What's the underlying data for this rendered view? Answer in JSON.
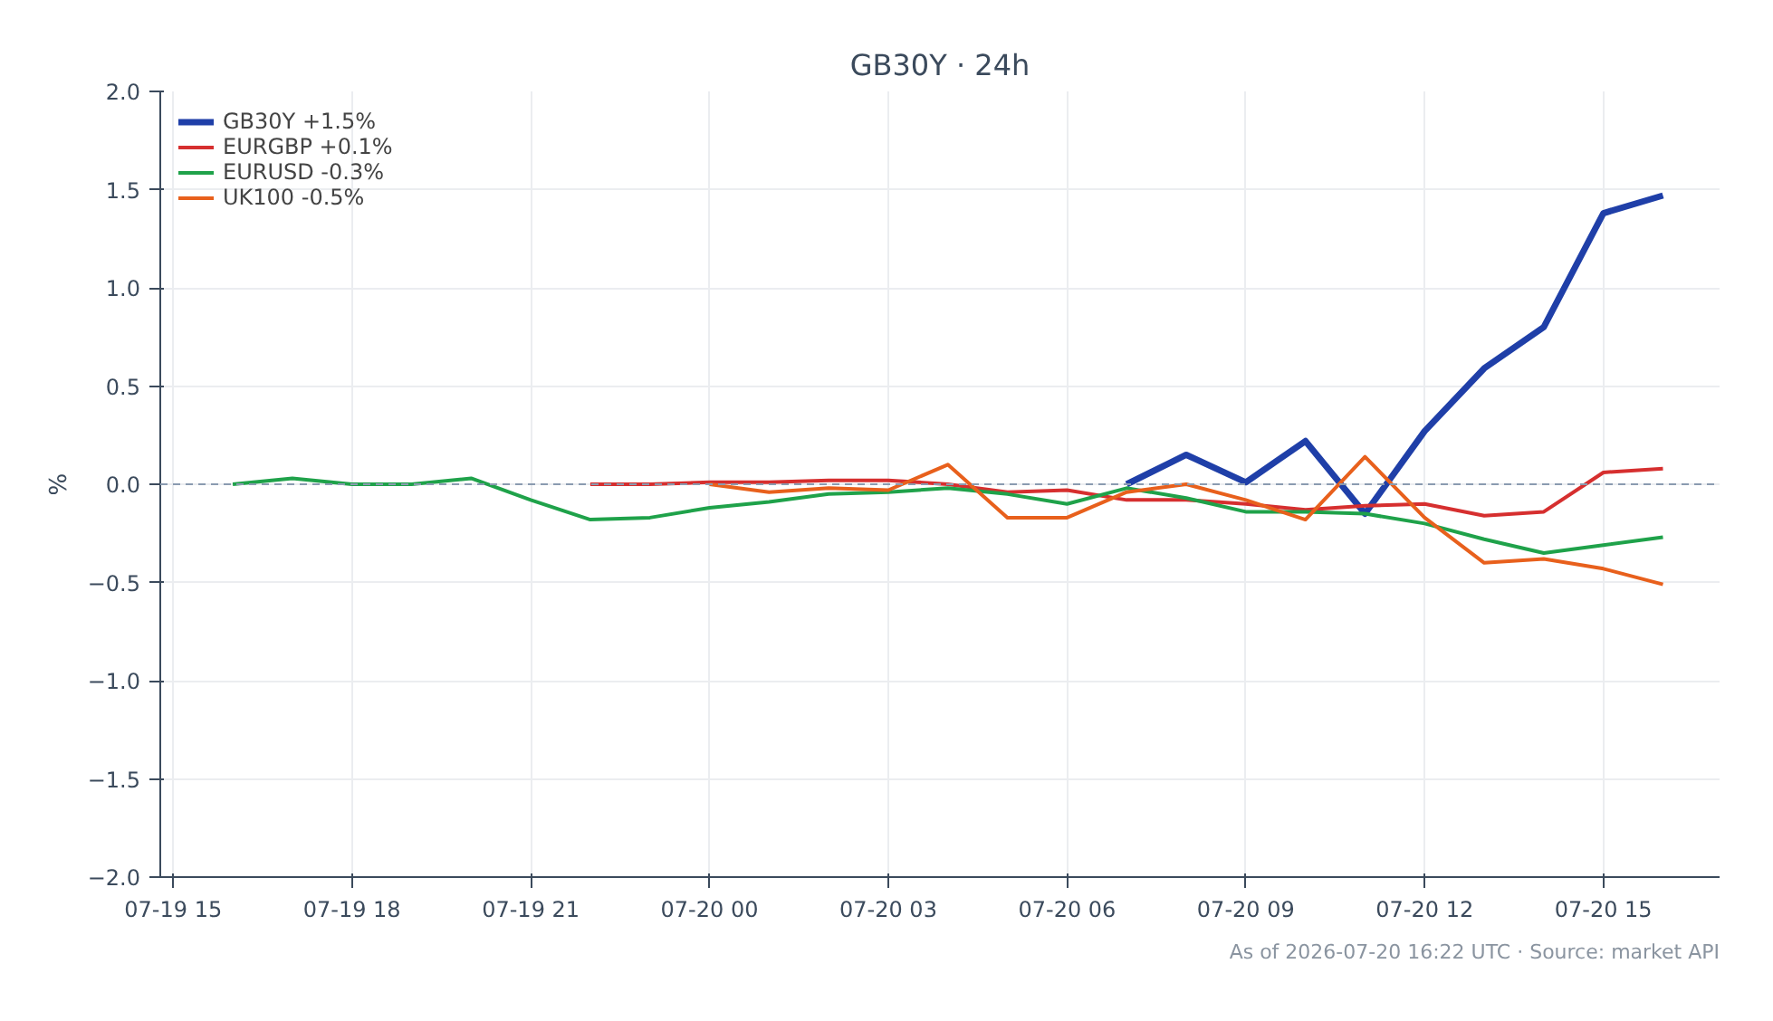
{
  "chart_data": {
    "type": "line",
    "title": "GB30Y · 24h",
    "ylabel": "%",
    "xlim": [
      "2026-07-19T14:47",
      "2026-07-20T16:57"
    ],
    "xticks": [
      {
        "value": "2026-07-19T15:00",
        "label": "07-19 15"
      },
      {
        "value": "2026-07-19T18:00",
        "label": "07-19 18"
      },
      {
        "value": "2026-07-19T21:00",
        "label": "07-19 21"
      },
      {
        "value": "2026-07-20T00:00",
        "label": "07-20 00"
      },
      {
        "value": "2026-07-20T03:00",
        "label": "07-20 03"
      },
      {
        "value": "2026-07-20T06:00",
        "label": "07-20 06"
      },
      {
        "value": "2026-07-20T09:00",
        "label": "07-20 09"
      },
      {
        "value": "2026-07-20T12:00",
        "label": "07-20 12"
      },
      {
        "value": "2026-07-20T15:00",
        "label": "07-20 15"
      }
    ],
    "ylim": [
      -2.0,
      2.0
    ],
    "yticks": [
      {
        "value": -2,
        "label": "−2.0"
      },
      {
        "value": -1.5,
        "label": "−1.5"
      },
      {
        "value": -1,
        "label": "−1.0"
      },
      {
        "value": -0.5,
        "label": "−0.5"
      },
      {
        "value": 0,
        "label": "0.0"
      },
      {
        "value": 0.5,
        "label": "0.5"
      },
      {
        "value": 1,
        "label": "1.0"
      },
      {
        "value": 1.5,
        "label": "1.5"
      },
      {
        "value": 2,
        "label": "2.0"
      }
    ],
    "grid": true,
    "legend": "top left",
    "line_style": "solid",
    "ref_lines": [
      {
        "axis": "y",
        "value": 0,
        "color": "#8a9bb0",
        "line_style": "dashed"
      }
    ],
    "annotations": [
      "As of 2026-07-20 16:22 UTC · Source: market API"
    ],
    "series": [
      {
        "name": "GB30Y +1.5%",
        "color": "#1f3fa8",
        "x": [
          "2026-07-20T07:00",
          "2026-07-20T08:00",
          "2026-07-20T09:00",
          "2026-07-20T10:00",
          "2026-07-20T11:00",
          "2026-07-20T12:00",
          "2026-07-20T13:00",
          "2026-07-20T14:00",
          "2026-07-20T15:00",
          "2026-07-20T16:00"
        ],
        "values": [
          0,
          0.15,
          0.01,
          0.22,
          -0.15,
          0.27,
          0.59,
          0.8,
          1.38,
          1.47
        ]
      },
      {
        "name": "EURGBP +0.1%",
        "color": "#d62f2f",
        "x": [
          "2026-07-19T22:00",
          "2026-07-19T23:00",
          "2026-07-20T00:00",
          "2026-07-20T01:00",
          "2026-07-20T02:00",
          "2026-07-20T03:00",
          "2026-07-20T04:00",
          "2026-07-20T05:00",
          "2026-07-20T06:00",
          "2026-07-20T07:00",
          "2026-07-20T08:00",
          "2026-07-20T09:00",
          "2026-07-20T10:00",
          "2026-07-20T11:00",
          "2026-07-20T12:00",
          "2026-07-20T13:00",
          "2026-07-20T14:00",
          "2026-07-20T15:00",
          "2026-07-20T16:00"
        ],
        "values": [
          0,
          0,
          0.01,
          0.01,
          0.02,
          0.02,
          0,
          -0.04,
          -0.03,
          -0.08,
          -0.08,
          -0.1,
          -0.13,
          -0.11,
          -0.1,
          -0.16,
          -0.14,
          0.06,
          0.08
        ]
      },
      {
        "name": "EURUSD -0.3%",
        "color": "#1fa24a",
        "x": [
          "2026-07-19T16:00",
          "2026-07-19T17:00",
          "2026-07-19T18:00",
          "2026-07-19T19:00",
          "2026-07-19T20:00",
          "2026-07-19T21:00",
          "2026-07-19T22:00",
          "2026-07-19T23:00",
          "2026-07-20T00:00",
          "2026-07-20T01:00",
          "2026-07-20T02:00",
          "2026-07-20T03:00",
          "2026-07-20T04:00",
          "2026-07-20T05:00",
          "2026-07-20T06:00",
          "2026-07-20T07:00",
          "2026-07-20T08:00",
          "2026-07-20T09:00",
          "2026-07-20T10:00",
          "2026-07-20T11:00",
          "2026-07-20T12:00",
          "2026-07-20T13:00",
          "2026-07-20T14:00",
          "2026-07-20T15:00",
          "2026-07-20T16:00"
        ],
        "values": [
          0,
          0.03,
          0,
          0,
          0.03,
          -0.08,
          -0.18,
          -0.17,
          -0.12,
          -0.09,
          -0.05,
          -0.04,
          -0.02,
          -0.05,
          -0.1,
          -0.02,
          -0.07,
          -0.14,
          -0.14,
          -0.15,
          -0.2,
          -0.28,
          -0.35,
          -0.31,
          -0.27
        ]
      },
      {
        "name": "UK100 -0.5%",
        "color": "#e8601c",
        "x": [
          "2026-07-20T00:00",
          "2026-07-20T01:00",
          "2026-07-20T02:00",
          "2026-07-20T03:00",
          "2026-07-20T04:00",
          "2026-07-20T05:00",
          "2026-07-20T06:00",
          "2026-07-20T07:00",
          "2026-07-20T08:00",
          "2026-07-20T09:00",
          "2026-07-20T10:00",
          "2026-07-20T11:00",
          "2026-07-20T12:00",
          "2026-07-20T13:00",
          "2026-07-20T14:00",
          "2026-07-20T15:00",
          "2026-07-20T16:00"
        ],
        "values": [
          0,
          -0.04,
          -0.02,
          -0.03,
          0.1,
          -0.17,
          -0.17,
          -0.04,
          0,
          -0.08,
          -0.18,
          0.14,
          -0.17,
          -0.4,
          -0.38,
          -0.43,
          -0.51
        ]
      }
    ]
  }
}
